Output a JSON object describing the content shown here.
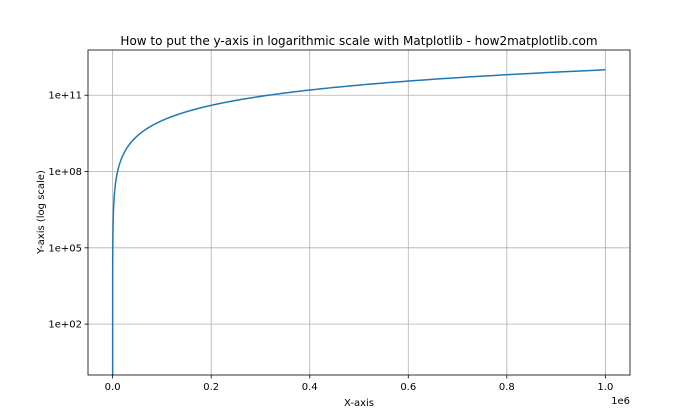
{
  "chart_data": {
    "type": "line",
    "title": "How to put the y-axis in logarithmic scale with Matplotlib - how2matplotlib.com",
    "xlabel": "X-axis",
    "ylabel": "Y-axis (log scale)",
    "x_offset_label": "1e6",
    "xscale": "linear",
    "yscale": "log",
    "xlim": [
      -50000,
      1050000
    ],
    "ylim": [
      1,
      6000000000000
    ],
    "grid": true,
    "x_ticks": [
      {
        "value": 0,
        "label": "0.0"
      },
      {
        "value": 200000,
        "label": "0.2"
      },
      {
        "value": 400000,
        "label": "0.4"
      },
      {
        "value": 600000,
        "label": "0.6"
      },
      {
        "value": 800000,
        "label": "0.8"
      },
      {
        "value": 1000000,
        "label": "1.0"
      }
    ],
    "y_ticks": [
      {
        "value": 100,
        "label": "1e+02"
      },
      {
        "value": 100000,
        "label": "1e+05"
      },
      {
        "value": 100000000,
        "label": "1e+08"
      },
      {
        "value": 100000000000,
        "label": "1e+11"
      }
    ],
    "series": [
      {
        "color": "#1f77b4",
        "function": "y = x^2",
        "x": [
          1,
          1000,
          5000,
          10000,
          20000,
          40000,
          70000,
          100000,
          150000,
          200000,
          300000,
          400000,
          500000,
          600000,
          700000,
          800000,
          900000,
          1000000
        ],
        "y": [
          1,
          1000000,
          25000000,
          100000000,
          400000000,
          1600000000,
          4900000000,
          10000000000,
          22500000000,
          40000000000,
          90000000000,
          160000000000,
          250000000000,
          360000000000,
          490000000000,
          640000000000,
          810000000000,
          1000000000000
        ]
      }
    ]
  }
}
